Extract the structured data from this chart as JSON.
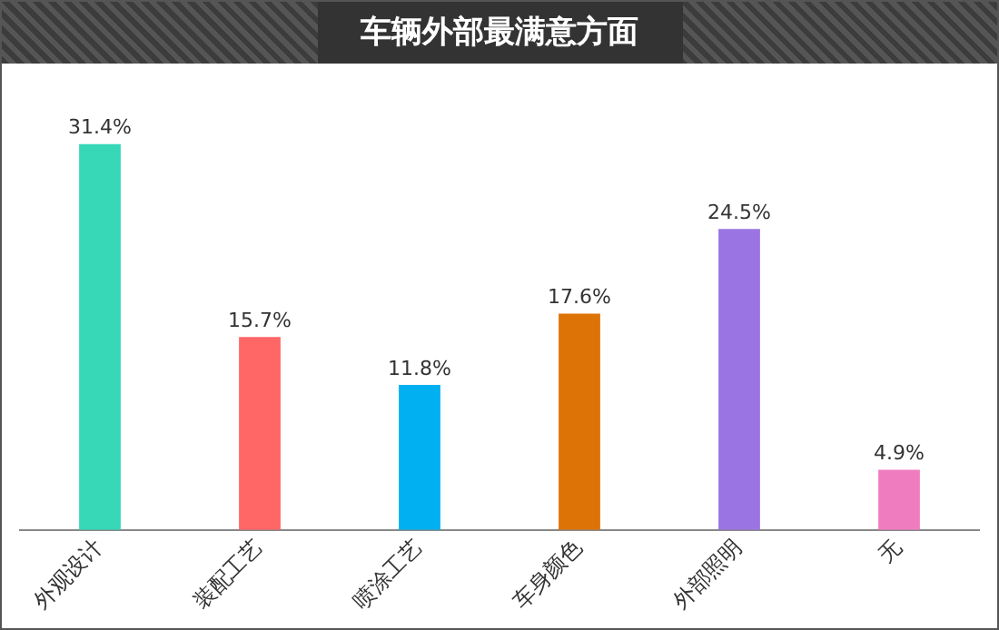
{
  "chart_data": {
    "type": "bar",
    "title": "车辆外部最满意方面",
    "categories": [
      "外观设计",
      "装配工艺",
      "喷涂工艺",
      "车身颜色",
      "外部照明",
      "无"
    ],
    "values": [
      31.4,
      15.7,
      11.8,
      17.6,
      24.5,
      4.9
    ],
    "colors": [
      "#36d8b8",
      "#ff6666",
      "#00b0f0",
      "#dd7306",
      "#9b74e3",
      "#f07cc0"
    ],
    "value_labels": [
      "31.4%",
      "15.7%",
      "11.8%",
      "17.6%",
      "24.5%",
      "4.9%"
    ],
    "grid": false,
    "legend": false
  }
}
